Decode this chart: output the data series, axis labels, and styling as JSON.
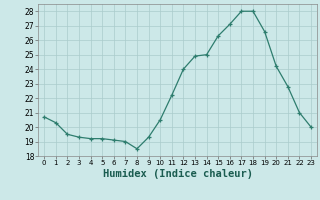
{
  "x": [
    0,
    1,
    2,
    3,
    4,
    5,
    6,
    7,
    8,
    9,
    10,
    11,
    12,
    13,
    14,
    15,
    16,
    17,
    18,
    19,
    20,
    21,
    22,
    23
  ],
  "y": [
    20.7,
    20.3,
    19.5,
    19.3,
    19.2,
    19.2,
    19.1,
    19.0,
    18.5,
    19.3,
    20.5,
    22.2,
    24.0,
    24.9,
    25.0,
    26.3,
    27.1,
    28.0,
    28.0,
    26.6,
    24.2,
    22.8,
    21.0,
    20.0
  ],
  "xlabel": "Humidex (Indice chaleur)",
  "xlim": [
    -0.5,
    23.5
  ],
  "ylim": [
    18,
    28.5
  ],
  "yticks": [
    18,
    19,
    20,
    21,
    22,
    23,
    24,
    25,
    26,
    27,
    28
  ],
  "xticks": [
    0,
    1,
    2,
    3,
    4,
    5,
    6,
    7,
    8,
    9,
    10,
    11,
    12,
    13,
    14,
    15,
    16,
    17,
    18,
    19,
    20,
    21,
    22,
    23
  ],
  "line_color": "#2e7d6e",
  "marker": "+",
  "bg_color": "#cce8e8",
  "grid_color": "#aacccc",
  "tick_fontsize": 5.5,
  "xlabel_fontsize": 7.5
}
